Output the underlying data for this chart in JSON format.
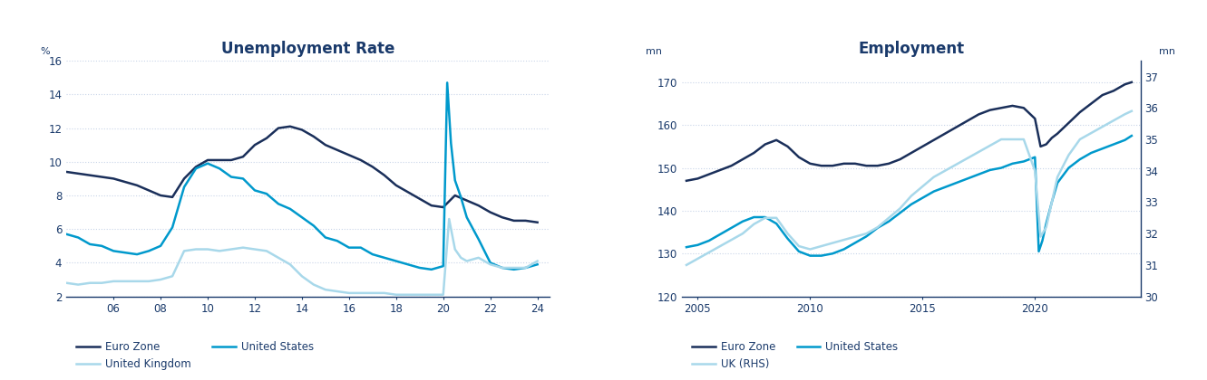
{
  "title1": "Unemployment Rate",
  "title2": "Employment",
  "chart1": {
    "ylim": [
      2,
      16
    ],
    "yticks": [
      2,
      4,
      6,
      8,
      10,
      12,
      14,
      16
    ],
    "xlim_year": [
      2004.0,
      2024.5
    ],
    "xtick_labels": [
      "06",
      "08",
      "10",
      "12",
      "14",
      "16",
      "18",
      "20",
      "22",
      "24"
    ],
    "xtick_positions": [
      2006,
      2008,
      2010,
      2012,
      2014,
      2016,
      2018,
      2020,
      2022,
      2024
    ],
    "euro_zone": {
      "color": "#1a2f5a",
      "lw": 1.8,
      "label": "Euro Zone",
      "x": [
        2004.0,
        2004.5,
        2005.0,
        2005.5,
        2006.0,
        2006.5,
        2007.0,
        2007.5,
        2008.0,
        2008.5,
        2009.0,
        2009.5,
        2010.0,
        2010.5,
        2011.0,
        2011.5,
        2012.0,
        2012.5,
        2013.0,
        2013.5,
        2014.0,
        2014.5,
        2015.0,
        2015.5,
        2016.0,
        2016.5,
        2017.0,
        2017.5,
        2018.0,
        2018.5,
        2019.0,
        2019.5,
        2020.0,
        2020.5,
        2021.0,
        2021.5,
        2022.0,
        2022.5,
        2023.0,
        2023.5,
        2024.0
      ],
      "y": [
        9.4,
        9.3,
        9.2,
        9.1,
        9.0,
        8.8,
        8.6,
        8.3,
        8.0,
        7.9,
        9.0,
        9.7,
        10.1,
        10.1,
        10.1,
        10.3,
        11.0,
        11.4,
        12.0,
        12.1,
        11.9,
        11.5,
        11.0,
        10.7,
        10.4,
        10.1,
        9.7,
        9.2,
        8.6,
        8.2,
        7.8,
        7.4,
        7.3,
        8.0,
        7.7,
        7.4,
        7.0,
        6.7,
        6.5,
        6.5,
        6.4
      ]
    },
    "us": {
      "color": "#0099cc",
      "lw": 1.8,
      "label": "United States",
      "x": [
        2004.0,
        2004.5,
        2005.0,
        2005.5,
        2006.0,
        2006.5,
        2007.0,
        2007.5,
        2008.0,
        2008.5,
        2009.0,
        2009.5,
        2010.0,
        2010.5,
        2011.0,
        2011.5,
        2012.0,
        2012.5,
        2013.0,
        2013.5,
        2014.0,
        2014.5,
        2015.0,
        2015.5,
        2016.0,
        2016.5,
        2017.0,
        2017.5,
        2018.0,
        2018.5,
        2019.0,
        2019.5,
        2020.0,
        2020.17,
        2020.33,
        2020.5,
        2020.75,
        2021.0,
        2021.5,
        2022.0,
        2022.5,
        2023.0,
        2023.5,
        2024.0
      ],
      "y": [
        5.7,
        5.5,
        5.1,
        5.0,
        4.7,
        4.6,
        4.5,
        4.7,
        5.0,
        6.1,
        8.5,
        9.6,
        9.9,
        9.6,
        9.1,
        9.0,
        8.3,
        8.1,
        7.5,
        7.2,
        6.7,
        6.2,
        5.5,
        5.3,
        4.9,
        4.9,
        4.5,
        4.3,
        4.1,
        3.9,
        3.7,
        3.6,
        3.8,
        14.7,
        11.1,
        8.9,
        7.9,
        6.7,
        5.4,
        4.0,
        3.7,
        3.6,
        3.7,
        3.9
      ]
    },
    "uk": {
      "color": "#a8d8ea",
      "lw": 1.8,
      "label": "United Kingdom",
      "x": [
        2004.0,
        2004.5,
        2005.0,
        2005.5,
        2006.0,
        2006.5,
        2007.0,
        2007.5,
        2008.0,
        2008.5,
        2009.0,
        2009.5,
        2010.0,
        2010.5,
        2011.0,
        2011.5,
        2012.0,
        2012.5,
        2013.0,
        2013.5,
        2014.0,
        2014.5,
        2015.0,
        2015.5,
        2016.0,
        2016.5,
        2017.0,
        2017.5,
        2018.0,
        2018.5,
        2019.0,
        2019.5,
        2020.0,
        2020.25,
        2020.5,
        2020.75,
        2021.0,
        2021.5,
        2022.0,
        2022.5,
        2023.0,
        2023.5,
        2024.0
      ],
      "y": [
        2.8,
        2.7,
        2.8,
        2.8,
        2.9,
        2.9,
        2.9,
        2.9,
        3.0,
        3.2,
        4.7,
        4.8,
        4.8,
        4.7,
        4.8,
        4.9,
        4.8,
        4.7,
        4.3,
        3.9,
        3.2,
        2.7,
        2.4,
        2.3,
        2.2,
        2.2,
        2.2,
        2.2,
        2.1,
        2.1,
        2.1,
        2.1,
        2.1,
        6.6,
        4.8,
        4.3,
        4.1,
        4.3,
        3.9,
        3.7,
        3.7,
        3.7,
        4.1
      ]
    }
  },
  "chart2": {
    "ylim_left": [
      120,
      175
    ],
    "ylim_right": [
      30,
      37.5
    ],
    "yticks_left": [
      120,
      130,
      140,
      150,
      160,
      170
    ],
    "yticks_right": [
      30,
      31,
      32,
      33,
      34,
      35,
      36,
      37
    ],
    "xlim_year": [
      2004.3,
      2024.7
    ],
    "xtick_labels": [
      "2005",
      "2010",
      "2015",
      "2020"
    ],
    "xtick_positions": [
      2005,
      2010,
      2015,
      2020
    ],
    "euro_zone": {
      "color": "#1a2f5a",
      "lw": 1.8,
      "label": "Euro Zone",
      "x": [
        2004.5,
        2005.0,
        2005.5,
        2006.0,
        2006.5,
        2007.0,
        2007.5,
        2008.0,
        2008.5,
        2009.0,
        2009.5,
        2010.0,
        2010.5,
        2011.0,
        2011.5,
        2012.0,
        2012.5,
        2013.0,
        2013.5,
        2014.0,
        2014.5,
        2015.0,
        2015.5,
        2016.0,
        2016.5,
        2017.0,
        2017.5,
        2018.0,
        2018.5,
        2019.0,
        2019.5,
        2020.0,
        2020.25,
        2020.5,
        2020.75,
        2021.0,
        2021.5,
        2022.0,
        2022.5,
        2023.0,
        2023.5,
        2024.0,
        2024.3
      ],
      "y": [
        147.0,
        147.5,
        148.5,
        149.5,
        150.5,
        152.0,
        153.5,
        155.5,
        156.5,
        155.0,
        152.5,
        151.0,
        150.5,
        150.5,
        151.0,
        151.0,
        150.5,
        150.5,
        151.0,
        152.0,
        153.5,
        155.0,
        156.5,
        158.0,
        159.5,
        161.0,
        162.5,
        163.5,
        164.0,
        164.5,
        164.0,
        161.5,
        155.0,
        155.5,
        157.0,
        158.0,
        160.5,
        163.0,
        165.0,
        167.0,
        168.0,
        169.5,
        170.0
      ]
    },
    "us": {
      "color": "#0099cc",
      "lw": 1.8,
      "label": "United States",
      "x": [
        2004.5,
        2005.0,
        2005.5,
        2006.0,
        2006.5,
        2007.0,
        2007.5,
        2008.0,
        2008.5,
        2009.0,
        2009.5,
        2010.0,
        2010.5,
        2011.0,
        2011.5,
        2012.0,
        2012.5,
        2013.0,
        2013.5,
        2014.0,
        2014.5,
        2015.0,
        2015.5,
        2016.0,
        2016.5,
        2017.0,
        2017.5,
        2018.0,
        2018.5,
        2019.0,
        2019.5,
        2020.0,
        2020.17,
        2020.33,
        2020.5,
        2020.75,
        2021.0,
        2021.5,
        2022.0,
        2022.5,
        2023.0,
        2023.5,
        2024.0,
        2024.3
      ],
      "y": [
        131.5,
        132.0,
        133.0,
        134.5,
        136.0,
        137.5,
        138.5,
        138.5,
        137.0,
        133.5,
        130.5,
        129.5,
        129.5,
        130.0,
        131.0,
        132.5,
        134.0,
        136.0,
        137.5,
        139.5,
        141.5,
        143.0,
        144.5,
        145.5,
        146.5,
        147.5,
        148.5,
        149.5,
        150.0,
        151.0,
        151.5,
        152.5,
        130.5,
        133.0,
        137.0,
        142.0,
        146.5,
        150.0,
        152.0,
        153.5,
        154.5,
        155.5,
        156.5,
        157.5
      ]
    },
    "uk": {
      "color": "#a8d8ea",
      "lw": 1.8,
      "label": "UK (RHS)",
      "x": [
        2004.5,
        2005.0,
        2005.5,
        2006.0,
        2006.5,
        2007.0,
        2007.5,
        2008.0,
        2008.5,
        2009.0,
        2009.5,
        2010.0,
        2010.5,
        2011.0,
        2011.5,
        2012.0,
        2012.5,
        2013.0,
        2013.5,
        2014.0,
        2014.5,
        2015.0,
        2015.5,
        2016.0,
        2016.5,
        2017.0,
        2017.5,
        2018.0,
        2018.5,
        2019.0,
        2019.5,
        2020.0,
        2020.25,
        2020.5,
        2020.75,
        2021.0,
        2021.5,
        2022.0,
        2022.5,
        2023.0,
        2023.5,
        2024.0,
        2024.3
      ],
      "y": [
        31.0,
        31.2,
        31.4,
        31.6,
        31.8,
        32.0,
        32.3,
        32.5,
        32.5,
        32.0,
        31.6,
        31.5,
        31.6,
        31.7,
        31.8,
        31.9,
        32.0,
        32.2,
        32.5,
        32.8,
        33.2,
        33.5,
        33.8,
        34.0,
        34.2,
        34.4,
        34.6,
        34.8,
        35.0,
        35.0,
        35.0,
        34.0,
        31.9,
        32.2,
        33.0,
        33.8,
        34.5,
        35.0,
        35.2,
        35.4,
        35.6,
        35.8,
        35.9
      ]
    }
  },
  "title_color": "#1a3a6b",
  "axis_color": "#1a3a6b",
  "tick_color": "#1a3a6b",
  "grid_color": "#c8d4e8",
  "bg_color": "#ffffff"
}
